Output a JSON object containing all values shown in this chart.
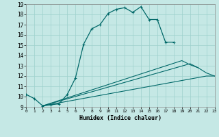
{
  "xlabel": "Humidex (Indice chaleur)",
  "xlim": [
    0,
    23
  ],
  "ylim": [
    9,
    19
  ],
  "xticks": [
    0,
    1,
    2,
    3,
    4,
    5,
    6,
    7,
    8,
    9,
    10,
    11,
    12,
    13,
    14,
    15,
    16,
    17,
    18,
    19,
    20,
    21,
    22,
    23
  ],
  "yticks": [
    9,
    10,
    11,
    12,
    13,
    14,
    15,
    16,
    17,
    18,
    19
  ],
  "bg_color": "#c5e8e5",
  "line_color": "#006868",
  "grid_color": "#9dd0cc",
  "lines": [
    {
      "x": [
        0,
        1,
        2,
        3,
        4,
        5,
        6,
        7,
        8,
        9,
        10,
        11,
        12,
        13,
        14,
        15,
        16,
        17,
        18
      ],
      "y": [
        10.2,
        9.8,
        9.1,
        9.2,
        9.3,
        10.2,
        11.8,
        15.1,
        16.6,
        17.0,
        18.1,
        18.5,
        18.65,
        18.2,
        18.75,
        17.5,
        17.5,
        15.3,
        15.3
      ],
      "marker": true
    },
    {
      "x": [
        2,
        22,
        23
      ],
      "y": [
        9.1,
        12.0,
        12.0
      ],
      "marker": false
    },
    {
      "x": [
        2,
        20,
        21
      ],
      "y": [
        9.1,
        13.2,
        12.8
      ],
      "marker": false
    },
    {
      "x": [
        2,
        19,
        20,
        21,
        22,
        23
      ],
      "y": [
        9.1,
        13.5,
        13.1,
        12.8,
        12.3,
        12.0
      ],
      "marker": false
    }
  ]
}
